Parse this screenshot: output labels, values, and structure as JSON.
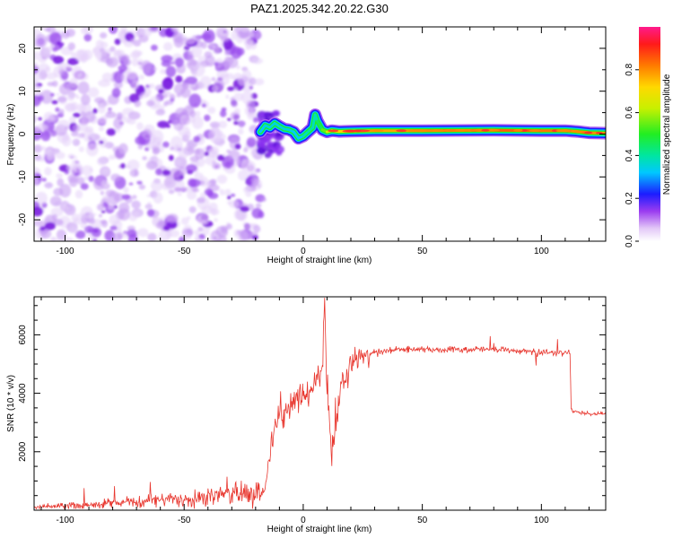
{
  "title": "PAZ1.2025.342.20.22.G30",
  "colors": {
    "line": "#e8372f",
    "blob": "#7b1fe0",
    "axis": "#000000"
  },
  "chart_data": [
    {
      "type": "heatmap",
      "xlabel": "Height of straight line (km)",
      "ylabel": "Frequency (Hz)",
      "xlim": [
        -113,
        127
      ],
      "ylim": [
        -25,
        25
      ],
      "xticks": [
        -100,
        -50,
        0,
        50,
        100
      ],
      "xtick_labels": [
        "-100",
        "-50",
        "0",
        "50",
        "100"
      ],
      "yticks": [
        -20,
        -10,
        0,
        10,
        20
      ],
      "ytick_labels": [
        "-20",
        "-10",
        "0",
        "10",
        "20"
      ],
      "noise_region_x": [
        -113,
        -18
      ],
      "ridge": {
        "x": [
          -18,
          -16,
          -14,
          -12,
          -10,
          -8,
          -6,
          -4,
          -2,
          0,
          2,
          4,
          5,
          6,
          8,
          10,
          12,
          15,
          20,
          30,
          50,
          80,
          100,
          110,
          115,
          120,
          127
        ],
        "y": [
          0.5,
          2,
          1.5,
          2.5,
          1.8,
          1.2,
          1.0,
          0.5,
          -1.0,
          -0.5,
          0.5,
          1.5,
          4.5,
          3.0,
          1.0,
          0.5,
          0.8,
          0.6,
          0.7,
          0.8,
          0.8,
          0.9,
          0.8,
          0.8,
          0.6,
          0.3,
          0.2
        ],
        "amplitude": [
          0.3,
          0.35,
          0.35,
          0.35,
          0.35,
          0.35,
          0.35,
          0.35,
          0.3,
          0.35,
          0.4,
          0.4,
          0.35,
          0.4,
          0.5,
          0.6,
          0.7,
          0.7,
          0.75,
          0.75,
          0.8,
          0.85,
          0.85,
          0.8,
          0.8,
          0.8,
          0.8
        ]
      },
      "colorbar": {
        "label": "Normalized spectral amplitude",
        "range": [
          0,
          1
        ],
        "ticks": [
          0.0,
          0.2,
          0.4,
          0.6,
          0.8
        ],
        "tick_labels": [
          "0.0",
          "0.2",
          "0.4",
          "0.6",
          "0.8"
        ]
      }
    },
    {
      "type": "line",
      "xlabel": "Height of straight line (km)",
      "ylabel": "SNR (10 * v/v)",
      "xlim": [
        -113,
        127
      ],
      "ylim": [
        0,
        7300
      ],
      "xticks": [
        -100,
        -50,
        0,
        50,
        100
      ],
      "xtick_labels": [
        "-100",
        "-50",
        "0",
        "50",
        "100"
      ],
      "yticks": [
        2000,
        4000,
        6000
      ],
      "ytick_labels": [
        "2000",
        "4000",
        "6000"
      ],
      "series": [
        {
          "name": "SNR",
          "x": [
            -113,
            -100,
            -90,
            -80,
            -70,
            -60,
            -50,
            -40,
            -30,
            -20,
            -16,
            -14,
            -12,
            -10,
            -8,
            -6,
            -4,
            -2,
            0,
            2,
            4,
            6,
            8,
            9,
            10,
            11,
            12,
            14,
            16,
            18,
            20,
            22,
            25,
            30,
            40,
            60,
            80,
            100,
            110,
            112,
            112.5,
            113,
            120,
            127
          ],
          "y": [
            100,
            150,
            200,
            250,
            300,
            350,
            400,
            500,
            600,
            650,
            700,
            1800,
            3000,
            3200,
            3300,
            3500,
            3600,
            3800,
            3900,
            4000,
            4200,
            4500,
            4800,
            7200,
            4000,
            3000,
            2000,
            3000,
            4200,
            4500,
            4800,
            5200,
            5200,
            5400,
            5500,
            5500,
            5500,
            5400,
            5400,
            5400,
            3500,
            3400,
            3300,
            3300
          ]
        }
      ]
    }
  ]
}
